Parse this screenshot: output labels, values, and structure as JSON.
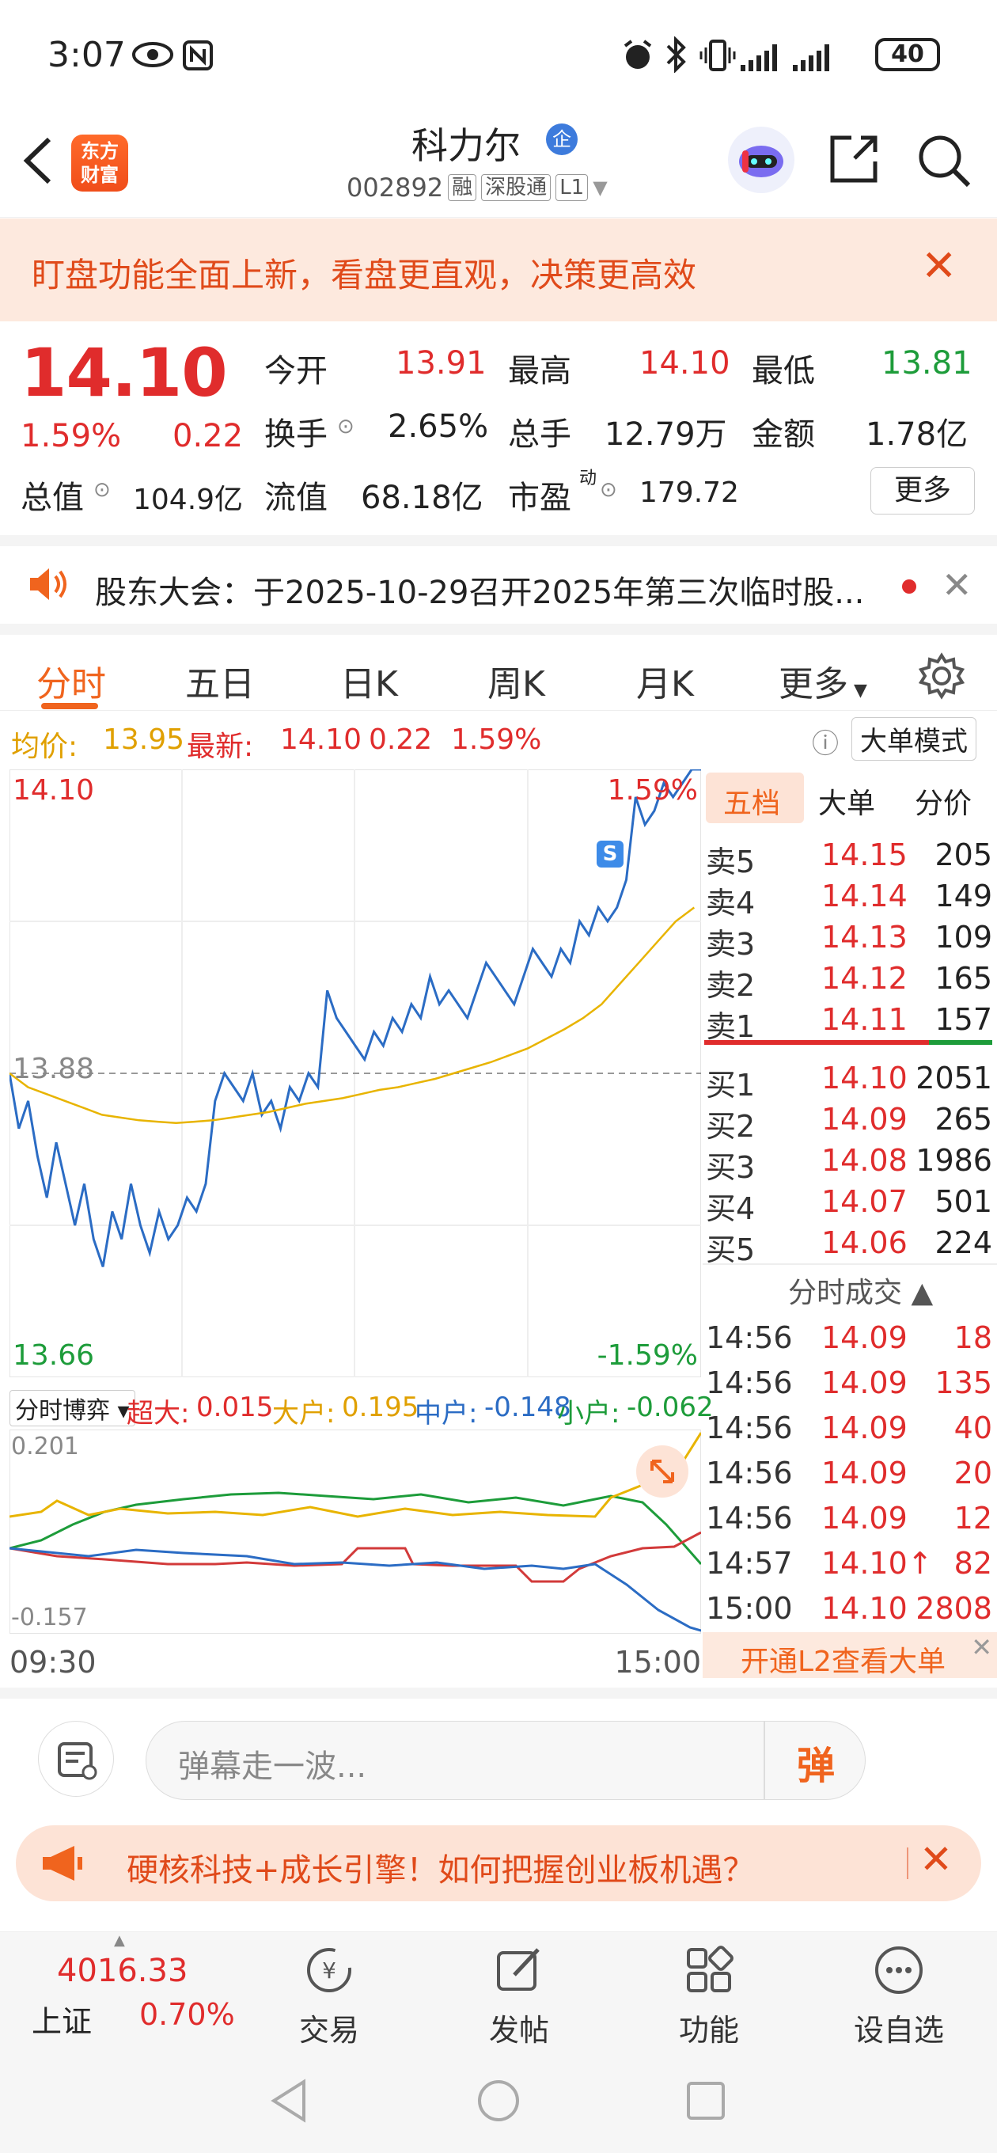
{
  "status_bar": {
    "time": "3:07",
    "battery": "40"
  },
  "header": {
    "logo_text_line1": "东方",
    "logo_text_line2": "财富",
    "stock_name": "科力尔",
    "name_badge": "企",
    "code": "002892",
    "tags": [
      "融",
      "深股通",
      "L1"
    ]
  },
  "banner": {
    "text": "盯盘功能全面上新，看盘更直观，决策更高效"
  },
  "quote": {
    "price": "14.10",
    "change_pct": "1.59%",
    "change_amt": "0.22",
    "open_label": "今开",
    "open": "13.91",
    "high_label": "最高",
    "high": "14.10",
    "low_label": "最低",
    "low": "13.81",
    "turnover_label": "换手",
    "turnover": "2.65%",
    "volume_label": "总手",
    "volume": "12.79万",
    "amount_label": "金额",
    "amount": "1.78亿",
    "mktcap_label": "总值",
    "mktcap": "104.9亿",
    "float_label": "流值",
    "float": "68.18亿",
    "pe_label": "市盈",
    "pe_super": "动",
    "pe": "179.72",
    "more_label": "更多"
  },
  "announcement": {
    "text": "股东大会：于2025-10-29召开2025年第三次临时股..."
  },
  "tabs": [
    "分时",
    "五日",
    "日K",
    "周K",
    "月K",
    "更多"
  ],
  "avg_line": {
    "avg_label": "均价:",
    "avg": "13.95",
    "latest_label": "最新:",
    "latest": "14.10",
    "chg": "0.22",
    "pct": "1.59%",
    "mode_label": "大单模式"
  },
  "chart_data": {
    "type": "line",
    "title": "",
    "y_top_label": "14.10",
    "y_mid_label": "13.88",
    "y_bottom_label": "13.66",
    "pct_top_label": "1.59%",
    "pct_bottom_label": "-1.59%",
    "ylim": [
      13.66,
      14.1
    ],
    "prev_close": 13.88,
    "series": [
      {
        "values": [
          13.88,
          13.84,
          13.86,
          13.82,
          13.79,
          13.83,
          13.8,
          13.77,
          13.8,
          13.76,
          13.74,
          13.78,
          13.76,
          13.8,
          13.77,
          13.75,
          13.78,
          13.76,
          13.77,
          13.79,
          13.78,
          13.8,
          13.86,
          13.88,
          13.87,
          13.86,
          13.88,
          13.85,
          13.86,
          13.84,
          13.87,
          13.86,
          13.88,
          13.87,
          13.94,
          13.92,
          13.91,
          13.9,
          13.89,
          13.91,
          13.9,
          13.92,
          13.91,
          13.93,
          13.92,
          13.95,
          13.93,
          13.94,
          13.93,
          13.92,
          13.94,
          13.96,
          13.95,
          13.94,
          13.93,
          13.95,
          13.97,
          13.96,
          13.95,
          13.97,
          13.96,
          13.99,
          13.98,
          14.0,
          13.99,
          14.0,
          14.02,
          14.08,
          14.06,
          14.07,
          14.09,
          14.08,
          14.09,
          14.1,
          14.1
        ]
      },
      {
        "values": [
          13.88,
          13.87,
          13.865,
          13.86,
          13.855,
          13.85,
          13.848,
          13.846,
          13.845,
          13.844,
          13.845,
          13.846,
          13.848,
          13.85,
          13.852,
          13.855,
          13.858,
          13.86,
          13.862,
          13.865,
          13.868,
          13.87,
          13.873,
          13.876,
          13.88,
          13.884,
          13.888,
          13.893,
          13.898,
          13.905,
          13.912,
          13.92,
          13.93,
          13.945,
          13.96,
          13.975,
          13.99,
          14.0
        ]
      }
    ]
  },
  "orderbook": {
    "tabs": [
      "五档",
      "大单",
      "分价"
    ],
    "asks": [
      {
        "label": "卖5",
        "price": "14.15",
        "vol": "205"
      },
      {
        "label": "卖4",
        "price": "14.14",
        "vol": "149"
      },
      {
        "label": "卖3",
        "price": "14.13",
        "vol": "109"
      },
      {
        "label": "卖2",
        "price": "14.12",
        "vol": "165"
      },
      {
        "label": "卖1",
        "price": "14.11",
        "vol": "157"
      }
    ],
    "bids": [
      {
        "label": "买1",
        "price": "14.10",
        "vol": "2051"
      },
      {
        "label": "买2",
        "price": "14.09",
        "vol": "265"
      },
      {
        "label": "买3",
        "price": "14.08",
        "vol": "1986"
      },
      {
        "label": "买4",
        "price": "14.07",
        "vol": "501"
      },
      {
        "label": "买5",
        "price": "14.06",
        "vol": "224"
      }
    ],
    "trades_header": "分时成交",
    "trades": [
      {
        "time": "14:56",
        "price": "14.09",
        "vol": "18"
      },
      {
        "time": "14:56",
        "price": "14.09",
        "vol": "135"
      },
      {
        "time": "14:56",
        "price": "14.09",
        "vol": "40"
      },
      {
        "time": "14:56",
        "price": "14.09",
        "vol": "20"
      },
      {
        "time": "14:56",
        "price": "14.09",
        "vol": "12"
      },
      {
        "time": "14:57",
        "price": "14.10↑",
        "vol": "82"
      },
      {
        "time": "15:00",
        "price": "14.10",
        "vol": "2808"
      }
    ],
    "l2_label": "开通L2查看大单"
  },
  "subchart": {
    "selector": "分时博弈",
    "super_label": "超大:",
    "super": "0.015",
    "large_label": "大户:",
    "large": "0.195",
    "mid_label": "中户:",
    "mid": "-0.148",
    "small_label": "小户:",
    "small": "-0.062",
    "y_top": "0.201",
    "y_bottom": "-0.157"
  },
  "time_axis": {
    "start": "09:30",
    "end": "15:00"
  },
  "danmu": {
    "placeholder": "弹幕走一波...",
    "send_label": "弹"
  },
  "promo": {
    "text": "硬核科技+成长引擎！如何把握创业板机遇？"
  },
  "bottom_nav": {
    "index_value": "4016.33",
    "index_name": "上证",
    "index_pct": "0.70%",
    "items": [
      "交易",
      "发帖",
      "功能",
      "设自选"
    ]
  },
  "colors": {
    "accent": "#f0641e",
    "up": "#e02c2c",
    "down": "#1d9c3a",
    "line": "#2b6cc4",
    "avg": "#e8b400"
  }
}
